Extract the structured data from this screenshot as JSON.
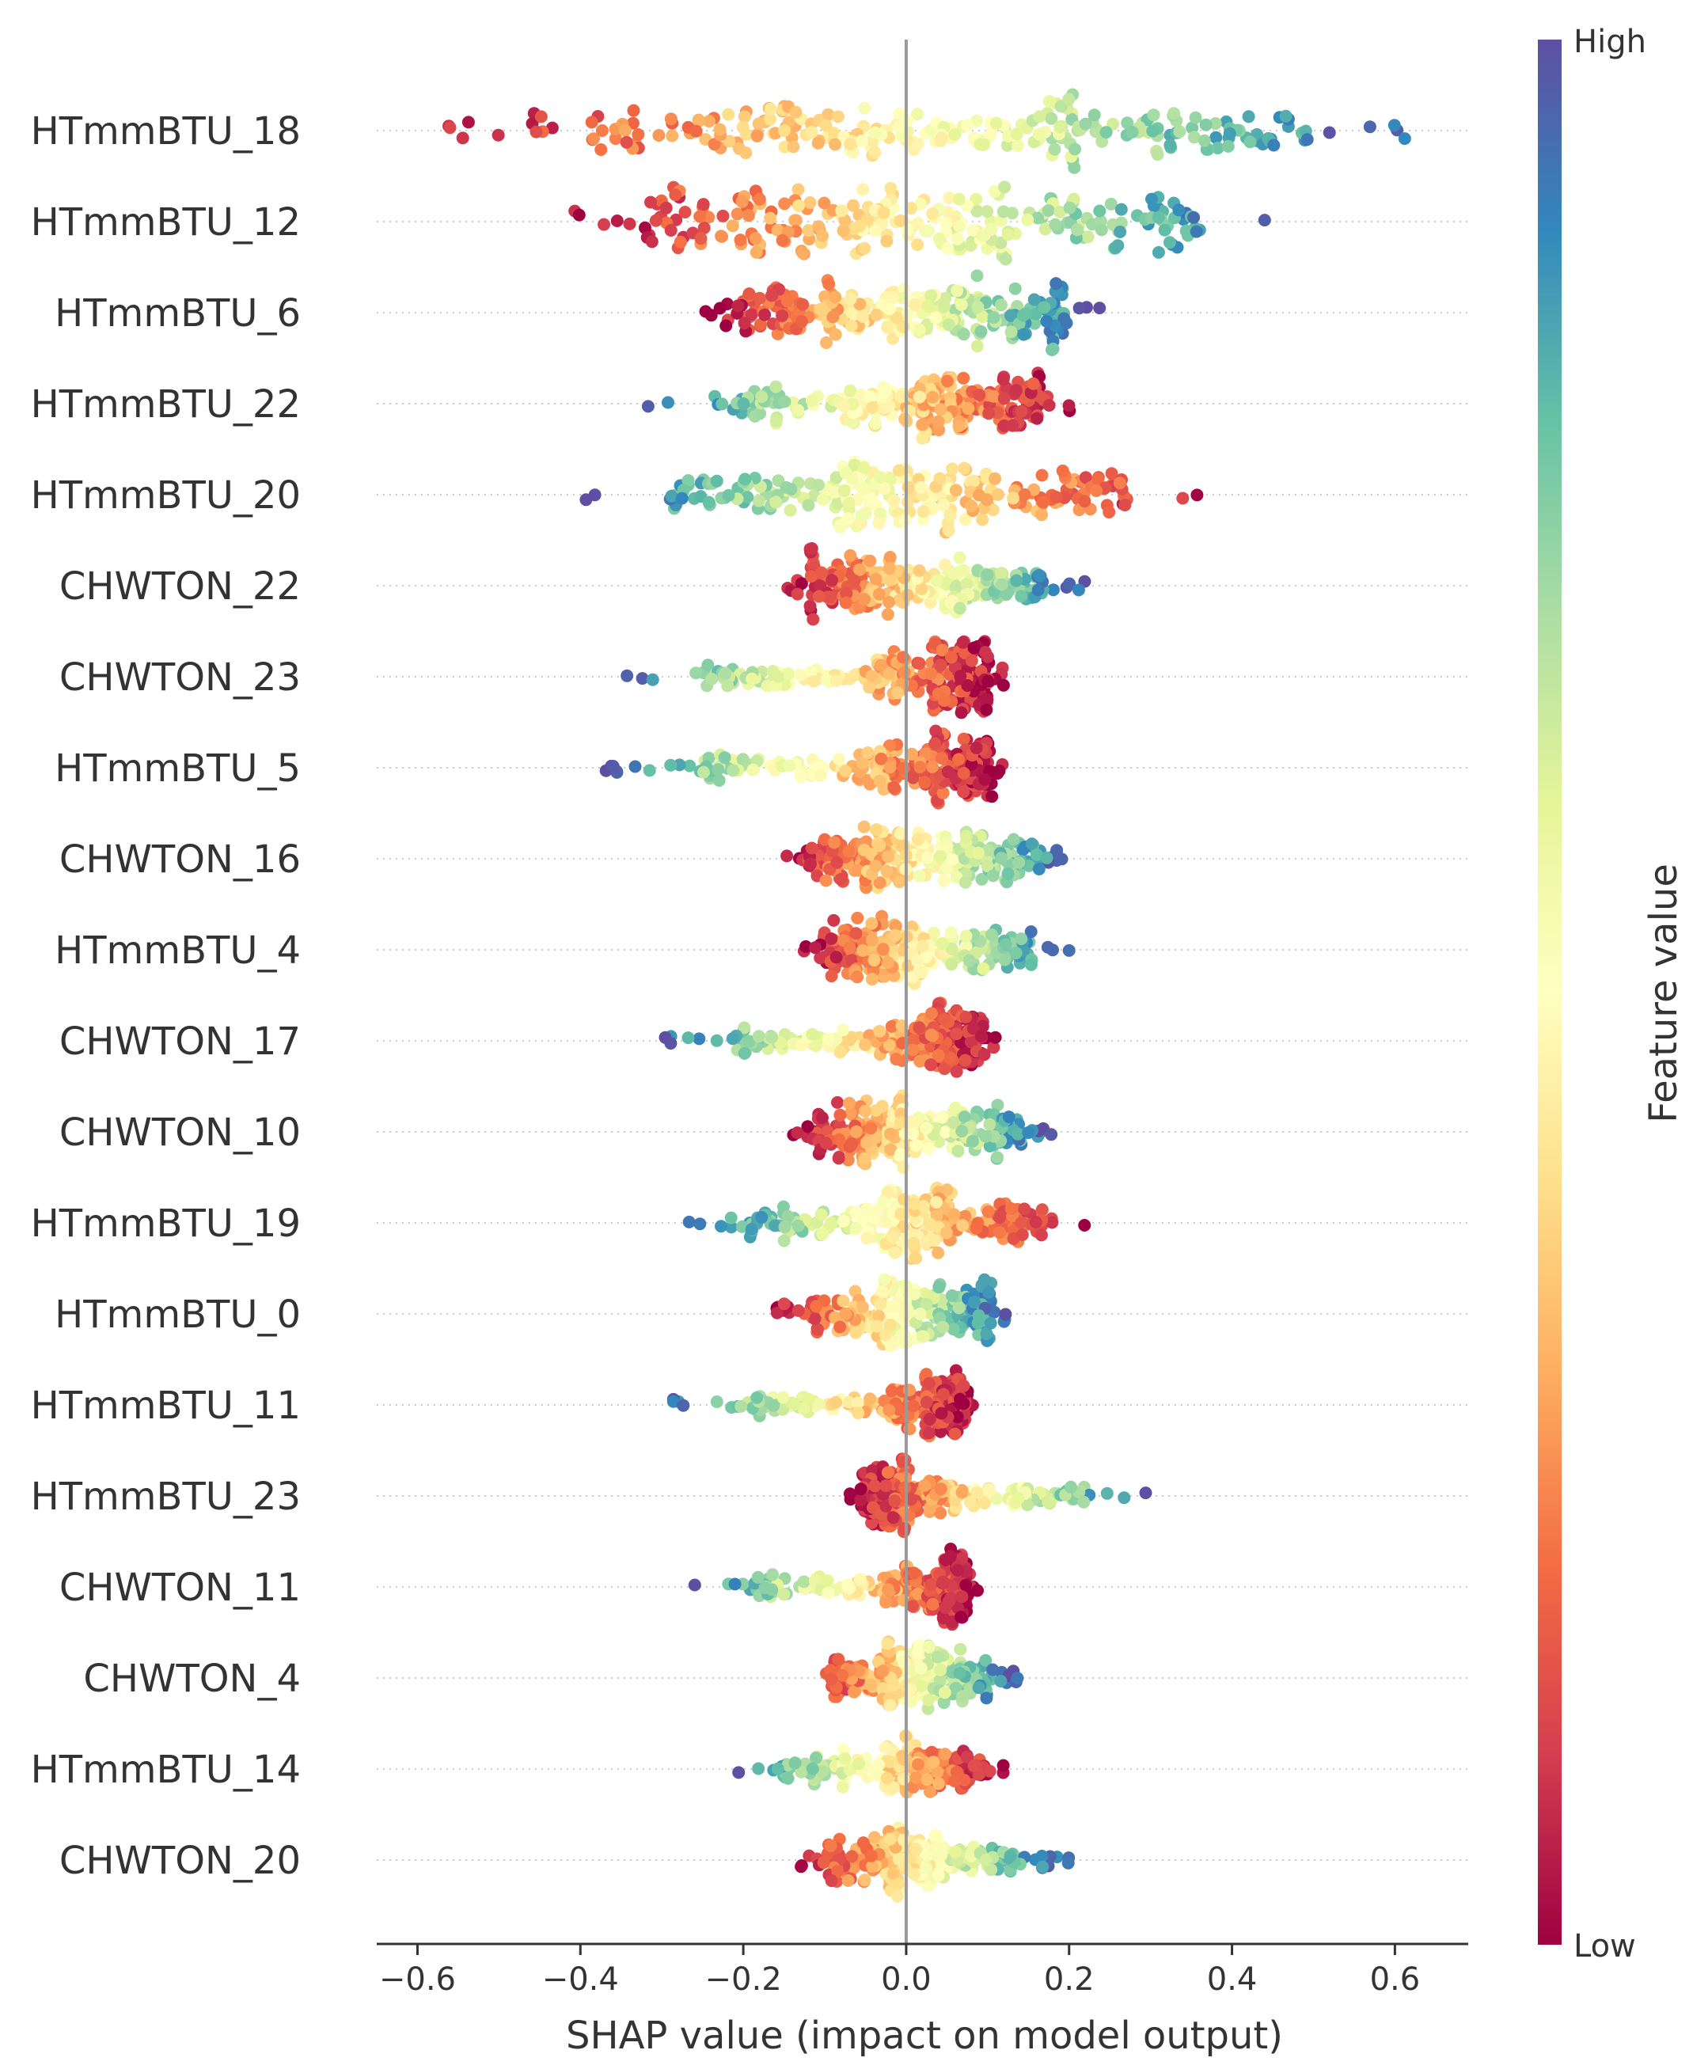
{
  "chart_data": {
    "type": "scatter",
    "subtype": "shap-beeswarm",
    "title": "",
    "xlabel": "SHAP value (impact on model output)",
    "ylabel": "",
    "xlim": [
      -0.65,
      0.69
    ],
    "xticks": [
      "−0.6",
      "−0.4",
      "−0.2",
      "0.0",
      "0.2",
      "0.4",
      "0.6"
    ],
    "xtick_values": [
      -0.6,
      -0.4,
      -0.2,
      0.0,
      0.2,
      0.4,
      0.6
    ],
    "grid": "dotted horizontal row lines",
    "zero_line": 0.0,
    "colormap": "Spectral",
    "colorbar": {
      "title": "Feature value",
      "high_label": "High",
      "low_label": "Low",
      "low_color": "#9e0142",
      "high_color": "#5e4fa2",
      "placement": "right"
    },
    "features": [
      {
        "name": "HTmmBTU_18",
        "min": -0.6,
        "max": 0.63,
        "q1": -0.2,
        "median": 0.02,
        "q3": 0.25,
        "correlation": "positive"
      },
      {
        "name": "HTmmBTU_12",
        "min": -0.41,
        "max": 0.46,
        "q1": -0.15,
        "median": 0.0,
        "q3": 0.18,
        "correlation": "positive"
      },
      {
        "name": "HTmmBTU_6",
        "min": -0.25,
        "max": 0.25,
        "q1": -0.11,
        "median": 0.0,
        "q3": 0.1,
        "correlation": "positive"
      },
      {
        "name": "HTmmBTU_22",
        "min": -0.33,
        "max": 0.21,
        "q1": -0.07,
        "median": 0.02,
        "q3": 0.08,
        "correlation": "negative"
      },
      {
        "name": "HTmmBTU_20",
        "min": -0.41,
        "max": 0.37,
        "q1": -0.09,
        "median": 0.01,
        "q3": 0.11,
        "correlation": "negative"
      },
      {
        "name": "CHWTON_22",
        "min": -0.15,
        "max": 0.22,
        "q1": -0.06,
        "median": 0.0,
        "q3": 0.08,
        "correlation": "positive"
      },
      {
        "name": "CHWTON_23",
        "min": -0.36,
        "max": 0.12,
        "q1": -0.05,
        "median": 0.03,
        "q3": 0.07,
        "correlation": "negative"
      },
      {
        "name": "HTmmBTU_5",
        "min": -0.39,
        "max": 0.12,
        "q1": -0.05,
        "median": 0.03,
        "q3": 0.07,
        "correlation": "negative"
      },
      {
        "name": "CHWTON_16",
        "min": -0.16,
        "max": 0.21,
        "q1": -0.05,
        "median": 0.0,
        "q3": 0.08,
        "correlation": "positive"
      },
      {
        "name": "HTmmBTU_4",
        "min": -0.13,
        "max": 0.2,
        "q1": -0.05,
        "median": 0.0,
        "q3": 0.07,
        "correlation": "positive"
      },
      {
        "name": "CHWTON_17",
        "min": -0.31,
        "max": 0.11,
        "q1": -0.04,
        "median": 0.03,
        "q3": 0.06,
        "correlation": "negative"
      },
      {
        "name": "CHWTON_10",
        "min": -0.14,
        "max": 0.18,
        "q1": -0.05,
        "median": 0.0,
        "q3": 0.07,
        "correlation": "positive"
      },
      {
        "name": "HTmmBTU_19",
        "min": -0.28,
        "max": 0.22,
        "q1": -0.03,
        "median": 0.02,
        "q3": 0.07,
        "correlation": "negative"
      },
      {
        "name": "HTmmBTU_0",
        "min": -0.16,
        "max": 0.13,
        "q1": -0.04,
        "median": 0.0,
        "q3": 0.06,
        "correlation": "positive"
      },
      {
        "name": "HTmmBTU_11",
        "min": -0.3,
        "max": 0.09,
        "q1": -0.03,
        "median": 0.02,
        "q3": 0.05,
        "correlation": "negative"
      },
      {
        "name": "HTmmBTU_23",
        "min": -0.07,
        "max": 0.3,
        "q1": -0.03,
        "median": 0.0,
        "q3": 0.07,
        "correlation": "positive"
      },
      {
        "name": "CHWTON_11",
        "min": -0.27,
        "max": 0.09,
        "q1": -0.03,
        "median": 0.02,
        "q3": 0.05,
        "correlation": "negative"
      },
      {
        "name": "CHWTON_4",
        "min": -0.12,
        "max": 0.14,
        "q1": -0.03,
        "median": 0.0,
        "q3": 0.05,
        "correlation": "positive"
      },
      {
        "name": "HTmmBTU_14",
        "min": -0.22,
        "max": 0.12,
        "q1": -0.03,
        "median": 0.01,
        "q3": 0.05,
        "correlation": "negative"
      },
      {
        "name": "CHWTON_20",
        "min": -0.14,
        "max": 0.2,
        "q1": -0.03,
        "median": 0.0,
        "q3": 0.05,
        "correlation": "positive"
      }
    ]
  }
}
